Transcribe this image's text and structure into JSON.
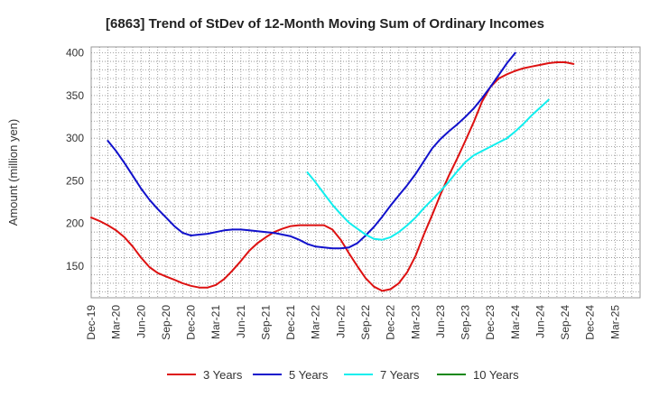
{
  "chart_data": {
    "type": "line",
    "title": "[6863]  Trend of StDev of 12-Month Moving Sum of Ordinary Incomes",
    "xlabel": "",
    "ylabel": "Amount (million yen)",
    "ylim": [
      113,
      407
    ],
    "yticks": [
      150,
      200,
      250,
      300,
      350,
      400
    ],
    "x_tick_labels": [
      "Dec-19",
      "Mar-20",
      "Jun-20",
      "Sep-20",
      "Dec-20",
      "Mar-21",
      "Jun-21",
      "Sep-21",
      "Dec-21",
      "Mar-22",
      "Jun-22",
      "Sep-22",
      "Dec-22",
      "Mar-23",
      "Jun-23",
      "Sep-23",
      "Dec-23",
      "Mar-24",
      "Jun-24",
      "Sep-24",
      "Dec-24",
      "Mar-25"
    ],
    "grid": true,
    "legend_position": "bottom",
    "series": [
      {
        "name": "3 Years",
        "color": "#dd1111",
        "start_index": 0,
        "values": [
          207,
          203,
          198,
          192,
          184,
          173,
          160,
          149,
          142,
          138,
          134,
          130,
          127,
          125,
          125,
          128,
          135,
          145,
          156,
          168,
          177,
          184,
          190,
          194,
          197,
          198,
          198,
          198,
          198,
          193,
          181,
          165,
          150,
          136,
          126,
          121,
          123,
          130,
          143,
          162,
          187,
          210,
          234,
          256,
          276,
          297,
          319,
          343,
          360,
          370,
          375,
          379,
          382,
          384,
          386,
          388,
          389,
          389,
          387
        ]
      },
      {
        "name": "5 Years",
        "color": "#1111cc",
        "start_index": 2,
        "values": [
          297,
          285,
          271,
          256,
          241,
          228,
          217,
          207,
          197,
          189,
          186,
          187,
          188,
          190,
          192,
          193,
          193,
          192,
          191,
          190,
          189,
          187,
          185,
          181,
          176,
          173,
          172,
          171,
          171,
          172,
          177,
          186,
          196,
          208,
          221,
          233,
          245,
          258,
          273,
          288,
          299,
          308,
          316,
          325,
          335,
          347,
          360,
          374,
          388,
          400
        ]
      },
      {
        "name": "7 Years",
        "color": "#11eeee",
        "start_index": 26,
        "values": [
          260,
          248,
          235,
          222,
          211,
          201,
          194,
          187,
          182,
          181,
          184,
          190,
          198,
          207,
          218,
          228,
          238,
          249,
          261,
          272,
          280,
          285,
          290,
          295,
          300,
          308,
          317,
          327,
          336,
          345
        ]
      },
      {
        "name": "10 Years",
        "color": "#118811",
        "start_index": 0,
        "values": []
      }
    ]
  }
}
